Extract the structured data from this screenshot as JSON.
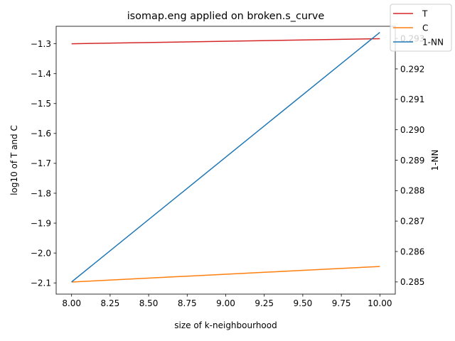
{
  "chart_data": {
    "type": "line",
    "title": "isomap.eng applied on broken.s_curve",
    "xlabel": "size of k-neighbourhood",
    "ylabel_left": "log10 of T and C",
    "ylabel_right": "1-NN",
    "x": [
      8,
      10
    ],
    "xlim": [
      7.9,
      10.1
    ],
    "ylim_left": [
      -2.1375,
      -1.2415
    ],
    "ylim_right": [
      0.2846,
      0.2934
    ],
    "x_ticks": [
      "8.00",
      "8.25",
      "8.50",
      "8.75",
      "9.00",
      "9.25",
      "9.50",
      "9.75",
      "10.00"
    ],
    "y_ticks_left": [
      "−2.1",
      "−2.0",
      "−1.9",
      "−1.8",
      "−1.7",
      "−1.6",
      "−1.5",
      "−1.4",
      "−1.3"
    ],
    "y_ticks_right": [
      "0.285",
      "0.286",
      "0.287",
      "0.288",
      "0.289",
      "0.290",
      "0.291",
      "0.292",
      "0.293"
    ],
    "grid": false,
    "legend_position": "top-right",
    "series": [
      {
        "name": "T",
        "axis": "left",
        "color": "#d62728",
        "values": [
          -1.3,
          -1.283
        ]
      },
      {
        "name": "C",
        "axis": "left",
        "color": "#ff7f0e",
        "values": [
          -2.097,
          -2.045
        ]
      },
      {
        "name": "1-NN",
        "axis": "right",
        "color": "#1f77b4",
        "values": [
          0.285,
          0.2932
        ]
      }
    ]
  }
}
